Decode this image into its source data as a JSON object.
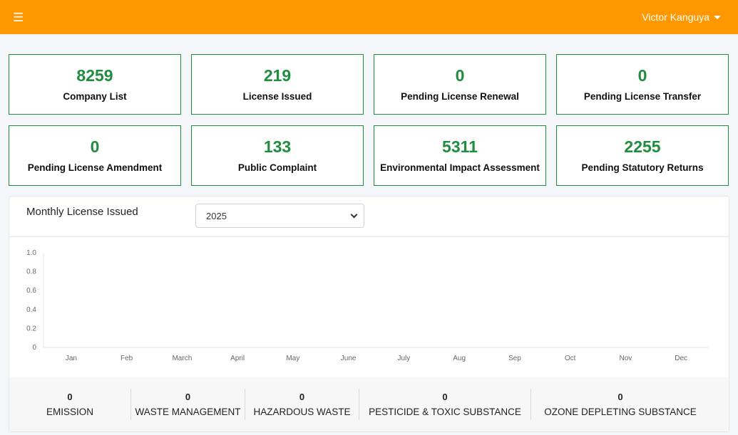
{
  "topbar": {
    "menu_icon": "hamburger-icon",
    "user_name": "Victor Kanguya",
    "user_caret_icon": "caret-down-icon",
    "color": "#ff9800"
  },
  "stats": [
    {
      "value": "8259",
      "label": "Company List"
    },
    {
      "value": "219",
      "label": "License Issued"
    },
    {
      "value": "0",
      "label": "Pending License Renewal"
    },
    {
      "value": "0",
      "label": "Pending License Transfer"
    },
    {
      "value": "0",
      "label": "Pending License Amendment"
    },
    {
      "value": "133",
      "label": "Public Complaint"
    },
    {
      "value": "5311",
      "label": "Environmental Impact Assessment"
    },
    {
      "value": "2255",
      "label": "Pending Statutory Returns"
    }
  ],
  "chart_panel": {
    "title": "Monthly License Issued",
    "year_select": "2025"
  },
  "chart_data": {
    "type": "line",
    "categories": [
      "Jan",
      "Feb",
      "March",
      "April",
      "May",
      "June",
      "July",
      "Aug",
      "Sep",
      "Oct",
      "Nov",
      "Dec"
    ],
    "y_ticks": [
      "1.0",
      "0.8",
      "0.6",
      "0.4",
      "0.2",
      "0"
    ],
    "ylim": [
      0,
      1
    ],
    "series": [],
    "grid": false
  },
  "footer_stats": [
    {
      "value": "0",
      "label": "EMISSION"
    },
    {
      "value": "0",
      "label": "WASTE MANAGEMENT"
    },
    {
      "value": "0",
      "label": "HAZARDOUS WASTE"
    },
    {
      "value": "0",
      "label": "PESTICIDE & TOXIC SUBSTANCE"
    },
    {
      "value": "0",
      "label": "OZONE DEPLETING SUBSTANCE"
    }
  ],
  "colors": {
    "accent": "#ff9800",
    "success": "#1e8e3e"
  }
}
